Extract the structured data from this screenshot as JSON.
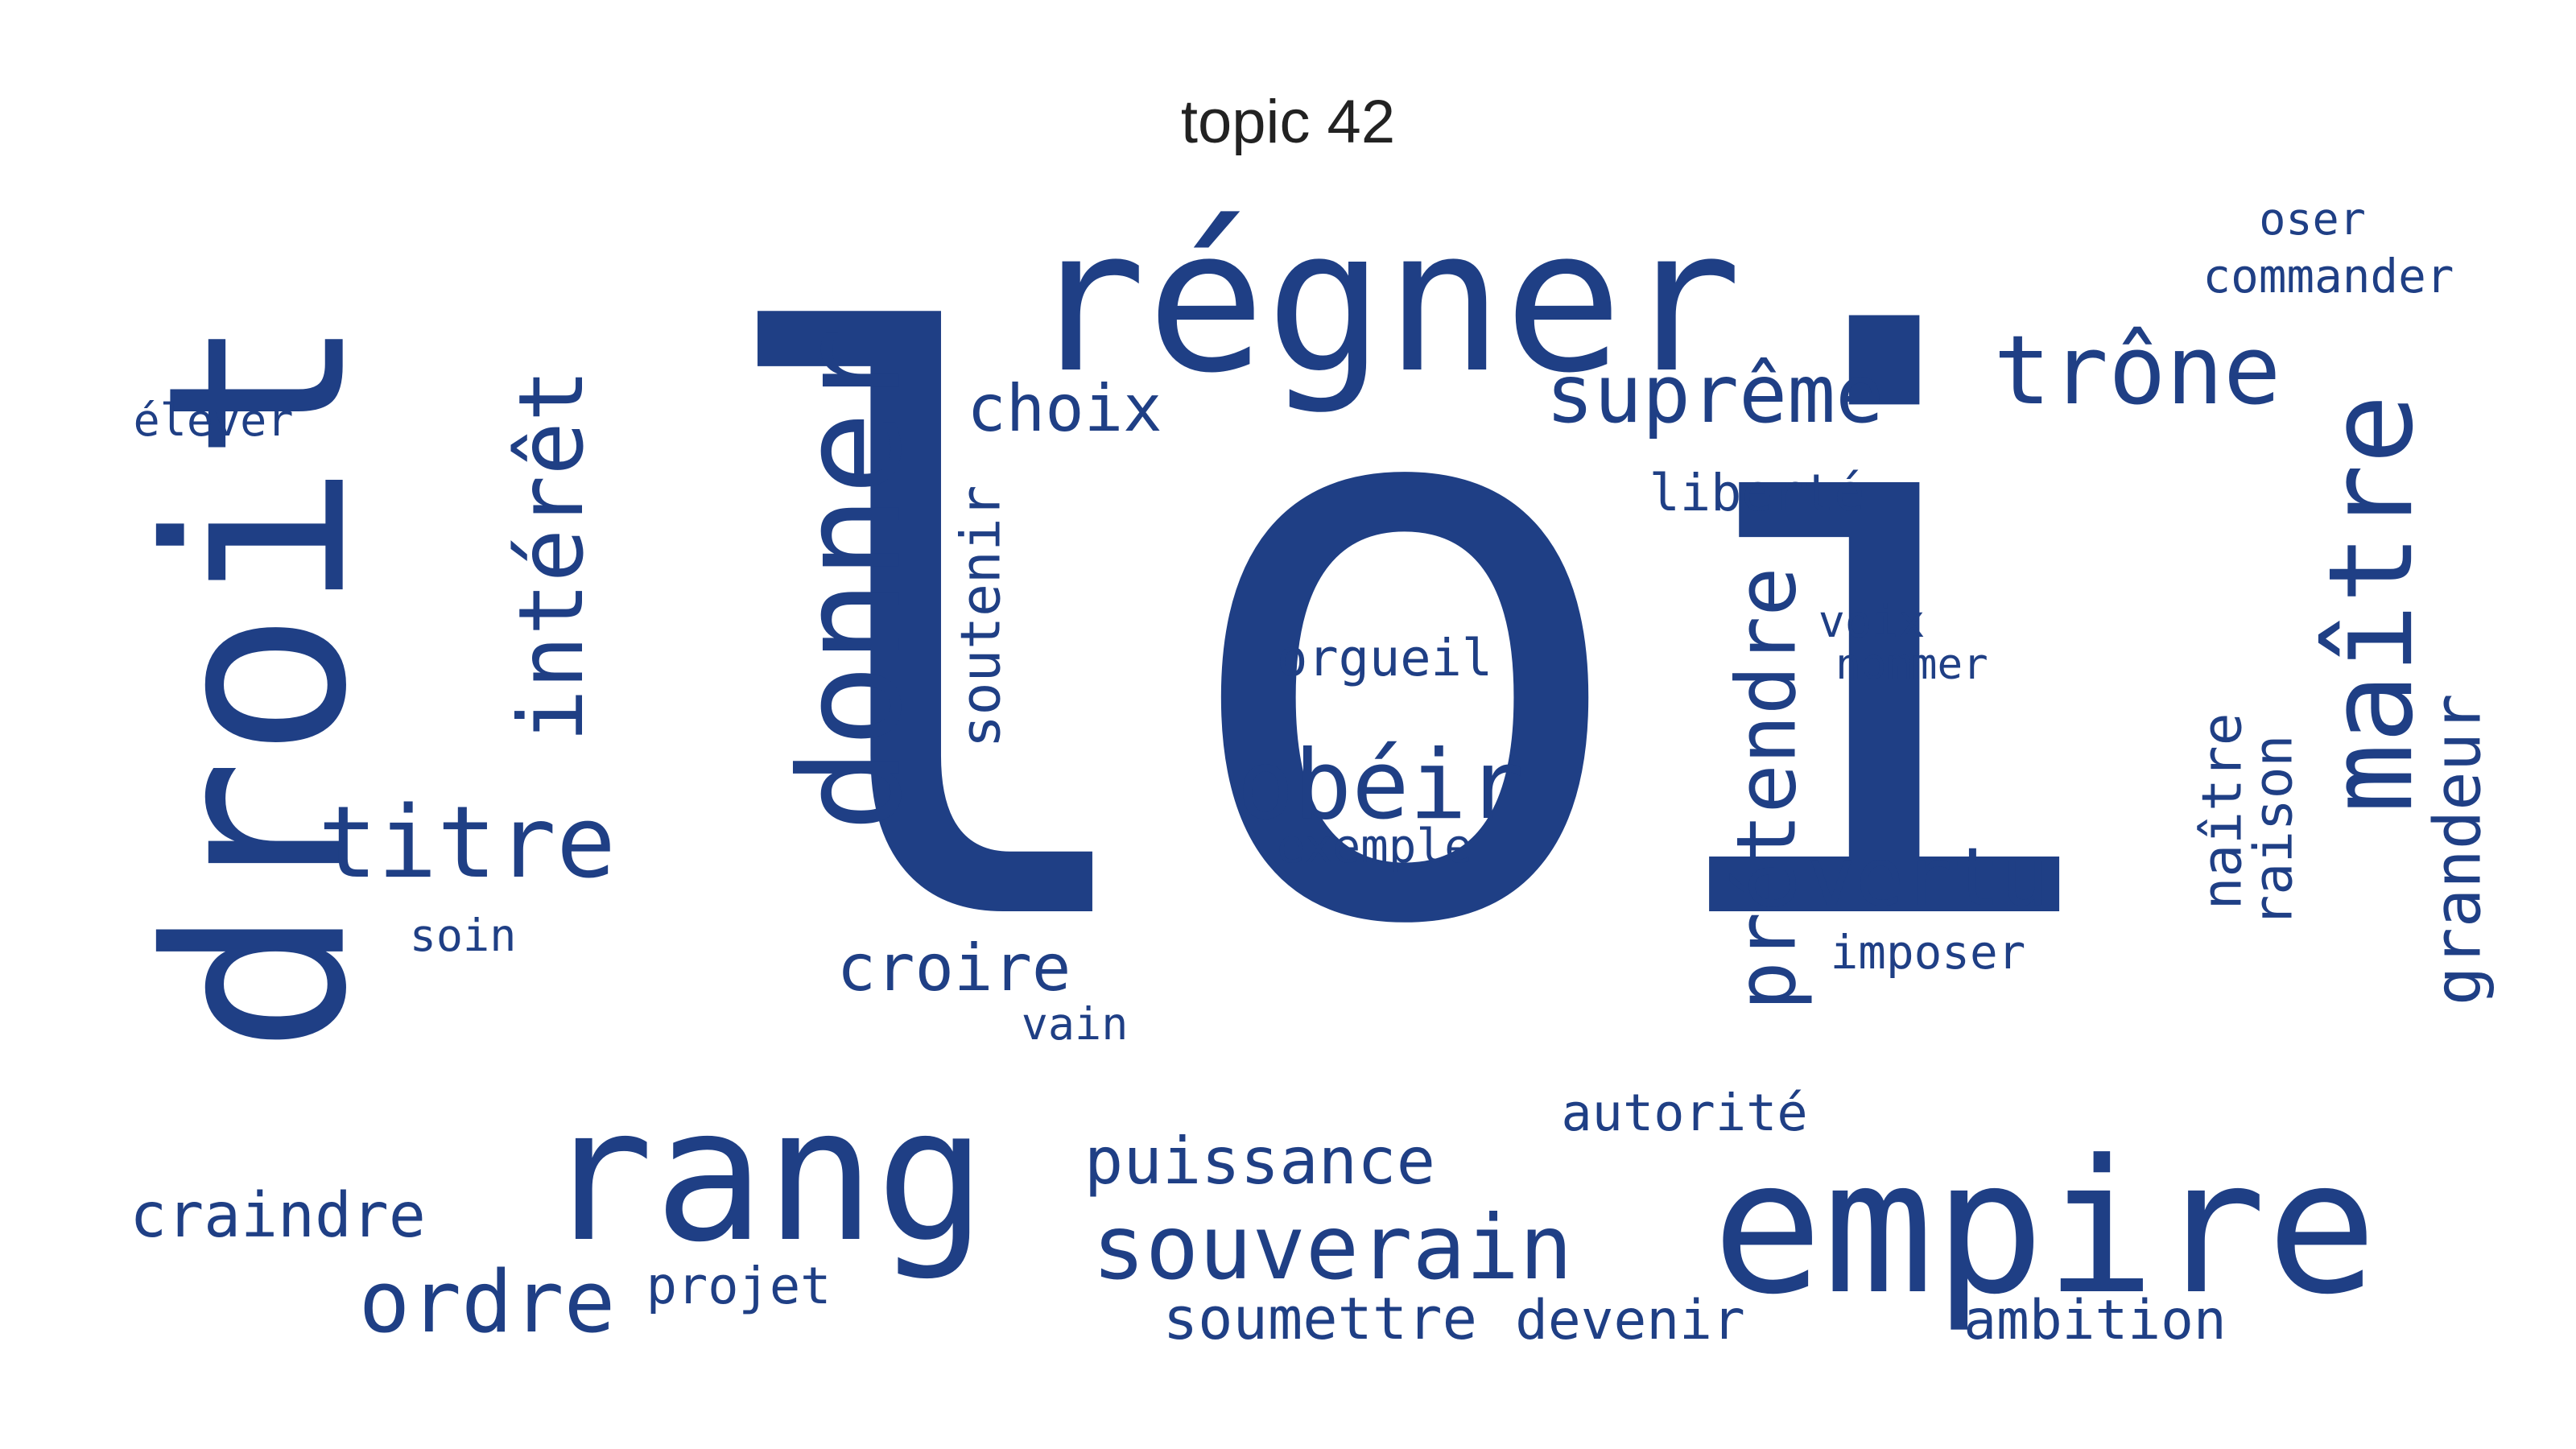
{
  "title": "topic 42",
  "colors": {
    "word": "#1f3f85",
    "title": "#222222",
    "background": "#ffffff"
  },
  "words": [
    {
      "id": "loi",
      "text": "loi"
    },
    {
      "id": "droit",
      "text": "droit"
    },
    {
      "id": "regner",
      "text": "régner"
    },
    {
      "id": "donner",
      "text": "donner"
    },
    {
      "id": "rang",
      "text": "rang"
    },
    {
      "id": "empire",
      "text": "empire"
    },
    {
      "id": "maitre",
      "text": "maître"
    },
    {
      "id": "trone",
      "text": "trône"
    },
    {
      "id": "interet",
      "text": "intérêt"
    },
    {
      "id": "titre",
      "text": "titre"
    },
    {
      "id": "pretendre",
      "text": "prétendre"
    },
    {
      "id": "supreme",
      "text": "suprême"
    },
    {
      "id": "obeir",
      "text": "obéir"
    },
    {
      "id": "souverain",
      "text": "souverain"
    },
    {
      "id": "vertu",
      "text": "vertu"
    },
    {
      "id": "ordre",
      "text": "ordre"
    },
    {
      "id": "choix",
      "text": "choix"
    },
    {
      "id": "puissance",
      "text": "puissance"
    },
    {
      "id": "croire",
      "text": "croire"
    },
    {
      "id": "soumettre",
      "text": "soumettre"
    },
    {
      "id": "craindre",
      "text": "craindre"
    },
    {
      "id": "liberte",
      "text": "liberté"
    },
    {
      "id": "orgueil",
      "text": "orgueil"
    },
    {
      "id": "autorite",
      "text": "autorité"
    },
    {
      "id": "ambition",
      "text": "ambition"
    },
    {
      "id": "devenir",
      "text": "devenir"
    },
    {
      "id": "projet",
      "text": "projet"
    },
    {
      "id": "grandeur",
      "text": "grandeur"
    },
    {
      "id": "soutenir",
      "text": "soutenir"
    },
    {
      "id": "exemple",
      "text": "exemple"
    },
    {
      "id": "imposer",
      "text": "imposer"
    },
    {
      "id": "commander",
      "text": "commander"
    },
    {
      "id": "voix",
      "text": "voix"
    },
    {
      "id": "nommer",
      "text": "nommer"
    },
    {
      "id": "naitre",
      "text": "naître"
    },
    {
      "id": "raison",
      "text": "raison"
    },
    {
      "id": "oser",
      "text": "oser"
    },
    {
      "id": "elever",
      "text": "élever"
    },
    {
      "id": "soin",
      "text": "soin"
    },
    {
      "id": "vain",
      "text": "vain"
    }
  ]
}
